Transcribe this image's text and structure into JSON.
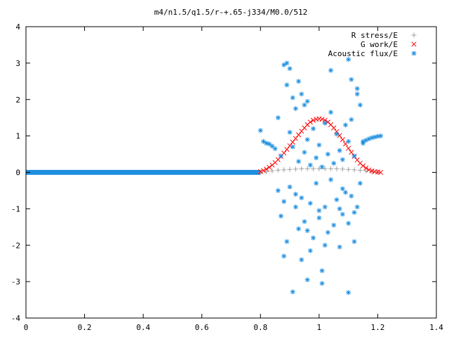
{
  "chart_data": {
    "type": "scatter",
    "title": "m4/n1.5/q1.5/r-+.65-j334/M0.0/512",
    "xlabel": "",
    "ylabel": "",
    "xlim": [
      0,
      1.4
    ],
    "ylim": [
      -4,
      4
    ],
    "xticks": [
      0,
      0.2,
      0.4,
      0.6,
      0.8,
      1,
      1.2,
      1.4
    ],
    "xtick_labels": [
      "0",
      "0.2",
      "0.4",
      "0.6",
      "0.8",
      "1",
      "1.2",
      "1.4"
    ],
    "yticks": [
      -4,
      -3,
      -2,
      -1,
      0,
      1,
      2,
      3,
      4
    ],
    "ytick_labels": [
      "-4",
      "-3",
      "-2",
      "-1",
      "0",
      "1",
      "2",
      "3",
      "4"
    ],
    "grid": false,
    "legend_position": "top-right",
    "series": [
      {
        "name": "R stress/E",
        "marker": "plus",
        "color": "#a0a0a0",
        "x": [
          0.8,
          0.82,
          0.84,
          0.86,
          0.88,
          0.9,
          0.92,
          0.94,
          0.96,
          0.98,
          1.0,
          1.02,
          1.04,
          1.06,
          1.08,
          1.1,
          1.12,
          1.14,
          1.16,
          1.18,
          1.2
        ],
        "y": [
          0.0,
          0.02,
          0.04,
          0.06,
          0.07,
          0.08,
          0.09,
          0.1,
          0.1,
          0.1,
          0.1,
          0.1,
          0.1,
          0.1,
          0.09,
          0.08,
          0.07,
          0.06,
          0.04,
          0.02,
          0.0
        ]
      },
      {
        "name": "G work/E",
        "marker": "cross",
        "color": "#ff0000",
        "x": [
          0.8,
          0.81,
          0.82,
          0.83,
          0.84,
          0.85,
          0.86,
          0.87,
          0.88,
          0.89,
          0.9,
          0.91,
          0.92,
          0.93,
          0.94,
          0.95,
          0.96,
          0.97,
          0.98,
          0.99,
          1.0,
          1.01,
          1.02,
          1.03,
          1.04,
          1.05,
          1.06,
          1.07,
          1.08,
          1.09,
          1.1,
          1.11,
          1.12,
          1.13,
          1.14,
          1.15,
          1.16,
          1.17,
          1.18,
          1.19,
          1.2,
          1.21
        ],
        "y": [
          0.02,
          0.05,
          0.09,
          0.14,
          0.2,
          0.27,
          0.35,
          0.44,
          0.53,
          0.63,
          0.73,
          0.83,
          0.93,
          1.03,
          1.13,
          1.22,
          1.31,
          1.38,
          1.43,
          1.46,
          1.47,
          1.46,
          1.43,
          1.38,
          1.31,
          1.22,
          1.12,
          1.01,
          0.9,
          0.78,
          0.66,
          0.55,
          0.44,
          0.34,
          0.25,
          0.18,
          0.12,
          0.07,
          0.04,
          0.02,
          0.01,
          0.0
        ]
      },
      {
        "name": "Acoustic flux/E",
        "marker": "star",
        "color": "#1e8fe0",
        "x": [
          0.8,
          0.81,
          0.82,
          0.83,
          0.84,
          0.85,
          0.86,
          0.86,
          0.87,
          0.87,
          0.88,
          0.88,
          0.89,
          0.89,
          0.9,
          0.9,
          0.91,
          0.91,
          0.92,
          0.92,
          0.93,
          0.93,
          0.94,
          0.94,
          0.95,
          0.95,
          0.96,
          0.96,
          0.97,
          0.97,
          0.98,
          0.98,
          0.99,
          0.99,
          1.0,
          1.0,
          1.01,
          1.01,
          1.02,
          1.02,
          1.03,
          1.03,
          1.04,
          1.04,
          1.05,
          1.05,
          1.06,
          1.06,
          1.07,
          1.07,
          1.08,
          1.08,
          1.09,
          1.09,
          1.1,
          1.1,
          1.11,
          1.11,
          1.12,
          1.12,
          1.13,
          1.13,
          1.14,
          1.14,
          1.15,
          1.15,
          1.16,
          1.17,
          1.18,
          1.19,
          1.2,
          1.21,
          0.89,
          0.9,
          0.91,
          0.93,
          0.95,
          0.96,
          1.04,
          1.1,
          1.11,
          1.13,
          0.92,
          0.96,
          1.0,
          1.02,
          1.07,
          1.1,
          1.12,
          0.97,
          1.01,
          0.88,
          0.94,
          1.08
        ],
        "y": [
          1.15,
          0.85,
          0.8,
          0.78,
          0.72,
          0.65,
          1.5,
          -0.5,
          0.45,
          -1.2,
          2.95,
          -0.8,
          2.4,
          -1.9,
          1.1,
          -0.4,
          0.7,
          -3.28,
          1.75,
          -0.6,
          0.3,
          -1.55,
          2.15,
          -2.4,
          0.55,
          -1.35,
          0.9,
          -2.95,
          0.2,
          -0.85,
          1.2,
          -1.8,
          0.4,
          -0.3,
          0.75,
          -1.05,
          0.15,
          -2.7,
          1.35,
          -0.95,
          0.5,
          -1.65,
          2.8,
          -0.2,
          0.25,
          -1.45,
          1.05,
          -0.75,
          0.6,
          -2.05,
          0.35,
          -1.15,
          1.3,
          -0.55,
          0.85,
          -3.3,
          2.55,
          -0.65,
          0.45,
          -1.9,
          2.3,
          -0.95,
          1.85,
          -0.3,
          0.8,
          0.85,
          0.88,
          0.92,
          0.95,
          0.97,
          0.99,
          1.0,
          3.0,
          2.85,
          2.05,
          2.5,
          1.85,
          1.95,
          1.65,
          3.1,
          1.45,
          2.15,
          -0.95,
          -1.6,
          -1.25,
          -2.0,
          -1.0,
          -1.4,
          -1.1,
          -2.15,
          -3.05,
          -2.3,
          -0.7,
          -0.45
        ]
      }
    ]
  }
}
